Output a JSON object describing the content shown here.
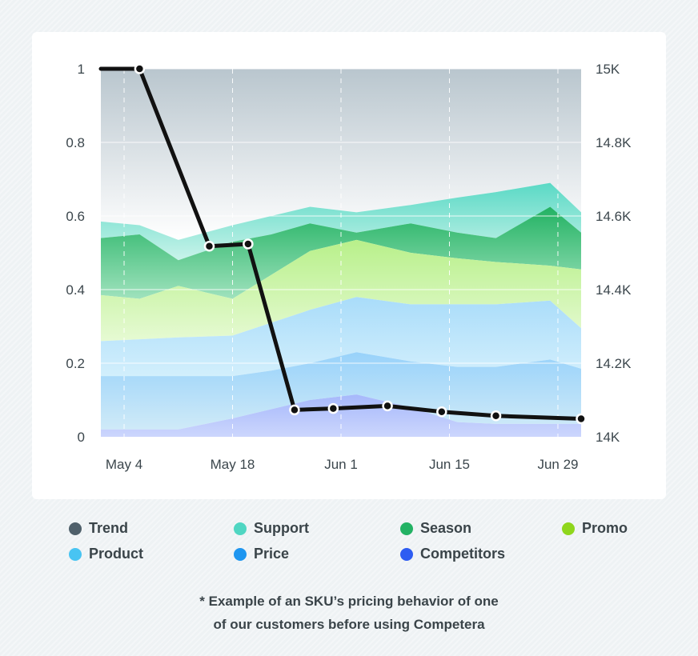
{
  "chart_data": {
    "type": "area",
    "title": "",
    "x_labels": [
      "May 4",
      "May 18",
      "Jun 1",
      "Jun 15",
      "Jun 29"
    ],
    "x_label_days": [
      7,
      21,
      35,
      49,
      63
    ],
    "x_range_days": [
      4,
      66
    ],
    "grid_days": [
      7,
      21,
      35,
      49,
      63
    ],
    "note_x": "x values are days since May 1",
    "y_left": {
      "range": [
        0,
        1
      ],
      "ticks": [
        0,
        0.2,
        0.4,
        0.6,
        0.8,
        1
      ],
      "tick_labels": [
        "0",
        "0.2",
        "0.4",
        "0.6",
        "0.8",
        "1"
      ]
    },
    "y_right": {
      "range": [
        14000,
        15000
      ],
      "ticks": [
        14000,
        14200,
        14400,
        14600,
        14800,
        15000
      ],
      "tick_labels": [
        "14K",
        "14.2K",
        "14.4K",
        "14.6K",
        "14.8K",
        "15K"
      ]
    },
    "area_x": [
      4,
      9,
      14,
      21,
      26,
      31,
      37,
      44,
      50,
      55,
      62,
      66
    ],
    "series": [
      {
        "name": "Trend",
        "color": "#4f606b",
        "top": [
          1,
          1,
          1,
          1,
          1,
          1,
          1,
          1,
          1,
          1,
          1,
          1
        ],
        "bottom": [
          0.585,
          0.575,
          0.535,
          0.575,
          0.6,
          0.625,
          0.61,
          0.63,
          0.65,
          0.665,
          0.69,
          0.61
        ]
      },
      {
        "name": "Support",
        "color": "#4fd6c2",
        "top": [
          0.585,
          0.575,
          0.535,
          0.575,
          0.6,
          0.625,
          0.61,
          0.63,
          0.65,
          0.665,
          0.69,
          0.61
        ],
        "bottom": [
          0.54,
          0.55,
          0.48,
          0.53,
          0.55,
          0.58,
          0.555,
          0.58,
          0.555,
          0.54,
          0.625,
          0.555
        ]
      },
      {
        "name": "Season",
        "color": "#23b264",
        "top": [
          0.54,
          0.55,
          0.48,
          0.53,
          0.55,
          0.58,
          0.555,
          0.58,
          0.555,
          0.54,
          0.625,
          0.555
        ],
        "bottom": [
          0.385,
          0.375,
          0.41,
          0.375,
          0.44,
          0.505,
          0.535,
          0.5,
          0.485,
          0.475,
          0.465,
          0.455
        ]
      },
      {
        "name": "Promo",
        "color": "#8fd61c",
        "top": [
          0.385,
          0.375,
          0.41,
          0.375,
          0.44,
          0.505,
          0.535,
          0.5,
          0.485,
          0.475,
          0.465,
          0.455
        ],
        "bottom": [
          0.26,
          0.265,
          0.27,
          0.275,
          0.31,
          0.345,
          0.38,
          0.36,
          0.36,
          0.36,
          0.37,
          0.295
        ]
      },
      {
        "name": "Product",
        "color": "#48c4f2",
        "top": [
          0.26,
          0.265,
          0.27,
          0.275,
          0.31,
          0.345,
          0.38,
          0.36,
          0.36,
          0.36,
          0.37,
          0.295
        ],
        "bottom": [
          0.165,
          0.165,
          0.165,
          0.165,
          0.18,
          0.2,
          0.23,
          0.205,
          0.19,
          0.19,
          0.21,
          0.185
        ]
      },
      {
        "name": "Price",
        "color": "#1e96f0",
        "top": [
          0.165,
          0.165,
          0.165,
          0.165,
          0.18,
          0.2,
          0.23,
          0.205,
          0.19,
          0.19,
          0.21,
          0.185
        ],
        "bottom": [
          0.02,
          0.02,
          0.02,
          0.05,
          0.075,
          0.1,
          0.115,
          0.08,
          0.04,
          0.035,
          0.035,
          0.035
        ]
      },
      {
        "name": "Competitors",
        "color": "#2d5cf2",
        "top": [
          0.02,
          0.02,
          0.02,
          0.05,
          0.075,
          0.1,
          0.115,
          0.08,
          0.04,
          0.035,
          0.035,
          0.035
        ],
        "bottom": [
          0,
          0,
          0,
          0,
          0,
          0,
          0,
          0,
          0,
          0,
          0,
          0
        ]
      }
    ],
    "price_line": {
      "name": "Price",
      "axis": "right",
      "color": "#111111",
      "x": [
        4,
        9,
        18,
        23,
        29,
        34,
        41,
        48,
        55,
        66
      ],
      "y": [
        15000,
        15000,
        14518,
        14524,
        14073,
        14077,
        14084,
        14068,
        14057,
        14049
      ]
    }
  },
  "legend": [
    {
      "label": "Trend",
      "color": "#4f606b"
    },
    {
      "label": "Support",
      "color": "#4fd6c2"
    },
    {
      "label": "Season",
      "color": "#23b264"
    },
    {
      "label": "Promo",
      "color": "#8fd61c"
    },
    {
      "label": "Product",
      "color": "#48c4f2"
    },
    {
      "label": "Price",
      "color": "#1e96f0"
    },
    {
      "label": "Competitors",
      "color": "#2d5cf2"
    }
  ],
  "footnote": {
    "line1": "* Example of an SKU’s pricing behavior of one",
    "line2": "of our customers before  using Competera"
  }
}
